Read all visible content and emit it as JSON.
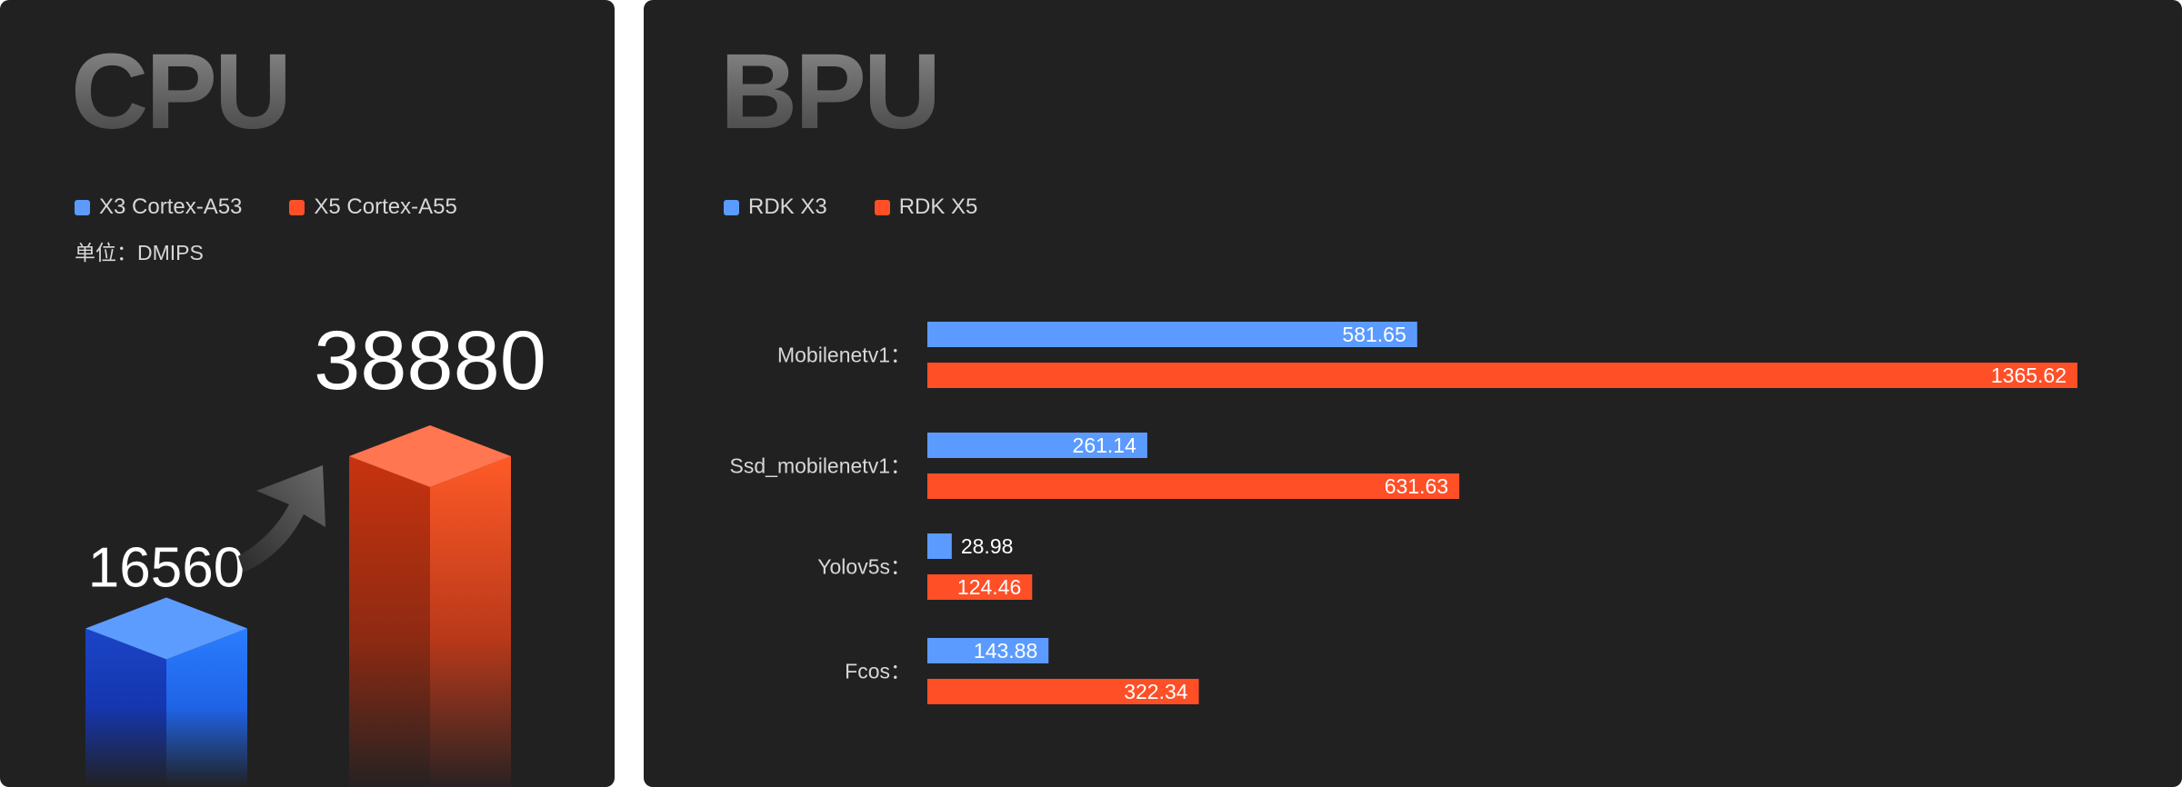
{
  "colors": {
    "x3": "#5b9bff",
    "x5": "#ff4f27",
    "panel": "#212122",
    "label": "#d7d7d7"
  },
  "chart_data": [
    {
      "type": "bar",
      "title": "CPU",
      "unit_label": "单位：DMIPS",
      "legend": {
        "placement": "top-left"
      },
      "categories": [
        "X3 Cortex-A53",
        "X5 Cortex-A55"
      ],
      "values": [
        16560,
        38880
      ],
      "data_labels": [
        "16560",
        "38880"
      ]
    },
    {
      "type": "bar",
      "orientation": "horizontal",
      "title": "BPU",
      "legend": {
        "placement": "top-left"
      },
      "categories": [
        "Mobilenetv1：",
        "Ssd_mobilenetv1：",
        "Yolov5s：",
        "Fcos："
      ],
      "series": [
        {
          "name": "RDK X3",
          "values": [
            581.65,
            261.14,
            28.98,
            143.88
          ]
        },
        {
          "name": "RDK X5",
          "values": [
            1365.62,
            631.63,
            124.46,
            322.34
          ]
        }
      ],
      "data_labels": [
        [
          "581.65",
          "261.14",
          "28.98",
          "143.88"
        ],
        [
          "1365.62",
          "631.63",
          "124.46",
          "322.34"
        ]
      ],
      "xlim": [
        0,
        1365.62
      ]
    }
  ]
}
